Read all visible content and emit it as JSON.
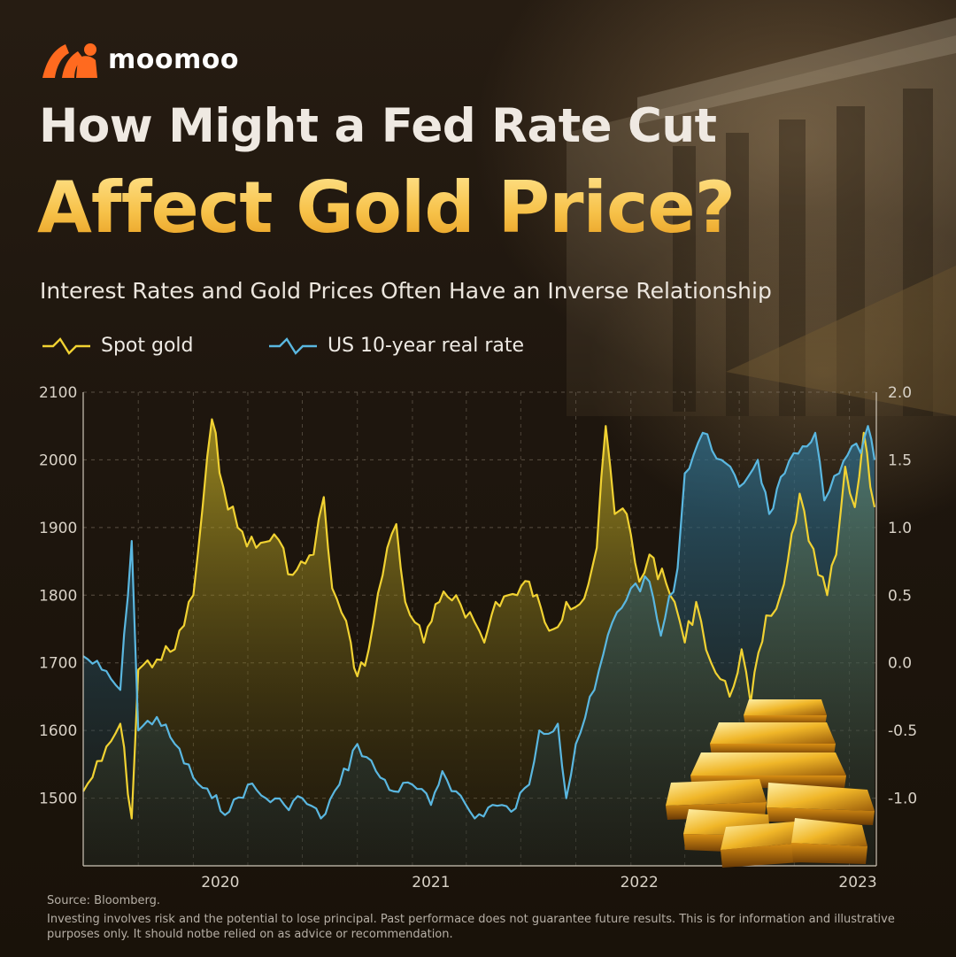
{
  "brand": {
    "name": "moomoo"
  },
  "header": {
    "title_line1": "How Might a Fed Rate Cut",
    "title_line2": "Affect Gold Price?",
    "subtitle": "Interest Rates and Gold Prices Often Have an Inverse Relationship"
  },
  "colors": {
    "gold": "#f1d232",
    "rate": "#5ab7e0",
    "title_gold": "#f7c24a",
    "background": "#1c150e"
  },
  "chart_data": {
    "type": "line",
    "x_axis": {
      "type": "date",
      "tick_labels": [
        "2020",
        "2021",
        "2022",
        "2023"
      ],
      "range": [
        "2019-07-01",
        "2023-02-15"
      ]
    },
    "y_left": {
      "ticks": [
        1500,
        1600,
        1700,
        1800,
        1900,
        2000,
        2100
      ],
      "range": [
        1400,
        2100
      ]
    },
    "y_right": {
      "ticks": [
        "-1.0",
        "-0.5",
        "0.0",
        "0.5",
        "1.0",
        "1.5",
        "2.0"
      ],
      "range": [
        -1.5,
        2.0
      ]
    },
    "grid": true,
    "legend_position": "top-left",
    "series": [
      {
        "name": "Spot gold",
        "axis": "left",
        "color": "#f1d232",
        "points": [
          [
            "2019-07-01",
            1510
          ],
          [
            "2019-08-01",
            1555
          ],
          [
            "2019-09-01",
            1610
          ],
          [
            "2019-09-20",
            1470
          ],
          [
            "2019-10-01",
            1690
          ],
          [
            "2019-11-01",
            1705
          ],
          [
            "2019-12-01",
            1720
          ],
          [
            "2020-01-01",
            1800
          ],
          [
            "2020-02-01",
            2060
          ],
          [
            "2020-02-20",
            1960
          ],
          [
            "2020-03-15",
            1900
          ],
          [
            "2020-04-15",
            1870
          ],
          [
            "2020-05-15",
            1890
          ],
          [
            "2020-06-15",
            1830
          ],
          [
            "2020-07-20",
            1860
          ],
          [
            "2020-08-06",
            1945
          ],
          [
            "2020-08-20",
            1810
          ],
          [
            "2020-09-20",
            1730
          ],
          [
            "2020-10-01",
            1680
          ],
          [
            "2020-10-20",
            1720
          ],
          [
            "2020-11-20",
            1870
          ],
          [
            "2020-12-05",
            1905
          ],
          [
            "2020-12-20",
            1790
          ],
          [
            "2021-01-05",
            1760
          ],
          [
            "2021-01-20",
            1730
          ],
          [
            "2021-02-15",
            1790
          ],
          [
            "2021-03-15",
            1800
          ],
          [
            "2021-04-15",
            1760
          ],
          [
            "2021-05-01",
            1730
          ],
          [
            "2021-05-20",
            1790
          ],
          [
            "2021-06-10",
            1800
          ],
          [
            "2021-06-25",
            1800
          ],
          [
            "2021-07-15",
            1820
          ],
          [
            "2021-08-10",
            1760
          ],
          [
            "2021-08-25",
            1750
          ],
          [
            "2021-09-15",
            1790
          ],
          [
            "2021-10-15",
            1795
          ],
          [
            "2021-11-05",
            1870
          ],
          [
            "2021-11-20",
            2050
          ],
          [
            "2021-12-05",
            1920
          ],
          [
            "2021-12-25",
            1920
          ],
          [
            "2022-01-15",
            1820
          ],
          [
            "2022-02-01",
            1860
          ],
          [
            "2022-03-15",
            1790
          ],
          [
            "2022-04-01",
            1730
          ],
          [
            "2022-04-20",
            1790
          ],
          [
            "2022-05-15",
            1700
          ],
          [
            "2022-06-15",
            1650
          ],
          [
            "2022-07-05",
            1720
          ],
          [
            "2022-07-20",
            1640
          ],
          [
            "2022-08-15",
            1770
          ],
          [
            "2022-09-01",
            1780
          ],
          [
            "2022-09-20",
            1850
          ],
          [
            "2022-10-10",
            1950
          ],
          [
            "2022-10-25",
            1880
          ],
          [
            "2022-11-10",
            1830
          ],
          [
            "2022-11-25",
            1800
          ],
          [
            "2022-12-10",
            1860
          ],
          [
            "2022-12-25",
            1990
          ],
          [
            "2023-01-10",
            1930
          ],
          [
            "2023-01-25",
            2040
          ],
          [
            "2023-02-05",
            1960
          ],
          [
            "2023-02-12",
            1930
          ]
        ]
      },
      {
        "name": "US 10-year real rate",
        "axis": "right",
        "color": "#5ab7e0",
        "points": [
          [
            "2019-07-01",
            0.05
          ],
          [
            "2019-08-01",
            -0.05
          ],
          [
            "2019-09-01",
            -0.2
          ],
          [
            "2019-09-20",
            0.9
          ],
          [
            "2019-10-01",
            -0.5
          ],
          [
            "2019-11-01",
            -0.4
          ],
          [
            "2019-12-01",
            -0.6
          ],
          [
            "2020-01-01",
            -0.85
          ],
          [
            "2020-02-01",
            -1.0
          ],
          [
            "2020-03-01",
            -1.1
          ],
          [
            "2020-04-01",
            -0.9
          ],
          [
            "2020-05-01",
            -1.0
          ],
          [
            "2020-06-01",
            -1.05
          ],
          [
            "2020-07-01",
            -1.0
          ],
          [
            "2020-08-01",
            -1.15
          ],
          [
            "2020-09-01",
            -0.9
          ],
          [
            "2020-10-01",
            -0.6
          ],
          [
            "2020-11-01",
            -0.8
          ],
          [
            "2020-12-01",
            -0.95
          ],
          [
            "2021-01-01",
            -0.9
          ],
          [
            "2021-02-01",
            -1.05
          ],
          [
            "2021-02-20",
            -0.8
          ],
          [
            "2021-03-15",
            -0.95
          ],
          [
            "2021-04-15",
            -1.15
          ],
          [
            "2021-05-15",
            -1.05
          ],
          [
            "2021-06-15",
            -1.1
          ],
          [
            "2021-07-15",
            -0.9
          ],
          [
            "2021-08-01",
            -0.5
          ],
          [
            "2021-09-01",
            -0.45
          ],
          [
            "2021-09-15",
            -1.0
          ],
          [
            "2021-10-01",
            -0.6
          ],
          [
            "2021-11-01",
            -0.2
          ],
          [
            "2021-12-01",
            0.3
          ],
          [
            "2022-01-01",
            0.55
          ],
          [
            "2022-02-01",
            0.6
          ],
          [
            "2022-02-20",
            0.2
          ],
          [
            "2022-03-20",
            0.7
          ],
          [
            "2022-04-01",
            1.4
          ],
          [
            "2022-05-01",
            1.7
          ],
          [
            "2022-06-01",
            1.5
          ],
          [
            "2022-07-01",
            1.3
          ],
          [
            "2022-08-01",
            1.5
          ],
          [
            "2022-08-20",
            1.1
          ],
          [
            "2022-09-15",
            1.4
          ],
          [
            "2022-10-15",
            1.6
          ],
          [
            "2022-11-05",
            1.7
          ],
          [
            "2022-11-20",
            1.2
          ],
          [
            "2022-12-15",
            1.4
          ],
          [
            "2023-01-05",
            1.6
          ],
          [
            "2023-01-20",
            1.55
          ],
          [
            "2023-02-01",
            1.75
          ],
          [
            "2023-02-12",
            1.5
          ]
        ]
      }
    ],
    "source_note": "Source: Bloomberg."
  },
  "footer": {
    "source": "Source: Bloomberg.",
    "disclaimer": "Investing involves risk and the potential to lose principal. Past performace does not guarantee future results. This is for information and illustrative purposes only. It should notbe relied on as advice or recommendation."
  }
}
